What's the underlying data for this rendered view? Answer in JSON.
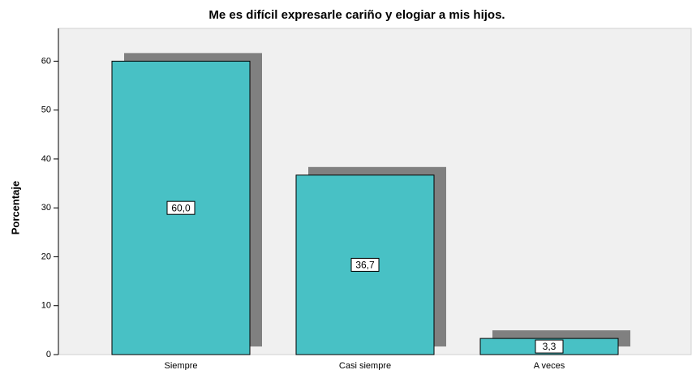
{
  "chart_data": {
    "type": "bar",
    "title": "Me es difícil expresarle cariño y elogiar a mis hijos.",
    "y_label": "Porcentaje",
    "categories": [
      "Siempre",
      "Casi siempre",
      "A veces"
    ],
    "values": [
      60.0,
      36.7,
      3.3
    ],
    "value_labels": [
      "60,0",
      "36,7",
      "3,3"
    ],
    "color": "#48c1c5",
    "shadow_color": "#808080",
    "ylim": [
      0,
      66.7
    ],
    "yticks": [
      0,
      10,
      20,
      30,
      40,
      50,
      60
    ],
    "grid": false
  }
}
